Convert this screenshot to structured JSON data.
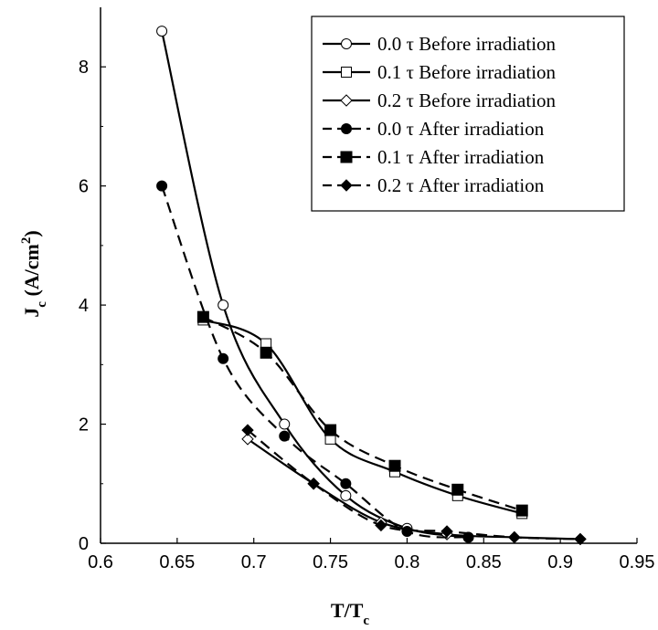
{
  "chart_data": {
    "type": "line",
    "xlabel": {
      "main": "T/T",
      "sub": "c"
    },
    "ylabel": {
      "main": "J",
      "sub": "c",
      "unit_open": " (A/cm",
      "sup": "2",
      "unit_close": ")"
    },
    "xlim": [
      0.6,
      0.95
    ],
    "ylim": [
      0,
      9
    ],
    "xticks": [
      "0.6",
      "0.65",
      "0.7",
      "0.75",
      "0.8",
      "0.85",
      "0.9",
      "0.95"
    ],
    "yticks": [
      "0",
      "2",
      "4",
      "6",
      "8"
    ],
    "legend_position": "top-right",
    "series": [
      {
        "name": "0.0 τ Before irradiation",
        "marker": "circle-open",
        "line": "solid",
        "x": [
          0.64,
          0.68,
          0.72,
          0.76,
          0.8,
          0.84
        ],
        "y": [
          8.6,
          4.0,
          2.0,
          0.8,
          0.25,
          0.1
        ]
      },
      {
        "name": "0.1 τ Before irradiation",
        "marker": "square-open",
        "line": "solid",
        "x": [
          0.667,
          0.708,
          0.75,
          0.792,
          0.833,
          0.875
        ],
        "y": [
          3.75,
          3.35,
          1.75,
          1.2,
          0.8,
          0.5
        ]
      },
      {
        "name": "0.2 τ Before irradiation",
        "marker": "diamond-open",
        "line": "solid",
        "x": [
          0.696,
          0.739,
          0.783,
          0.826,
          0.87,
          0.913
        ],
        "y": [
          1.75,
          1.0,
          0.35,
          0.15,
          0.1,
          0.07
        ]
      },
      {
        "name": "0.0 τ After irradiation",
        "marker": "circle-filled",
        "line": "dashed",
        "x": [
          0.64,
          0.68,
          0.72,
          0.76,
          0.8,
          0.84
        ],
        "y": [
          6.0,
          3.1,
          1.8,
          1.0,
          0.2,
          0.1
        ]
      },
      {
        "name": "0.1 τ After irradiation",
        "marker": "square-filled",
        "line": "dashed",
        "x": [
          0.667,
          0.708,
          0.75,
          0.792,
          0.833,
          0.875
        ],
        "y": [
          3.8,
          3.2,
          1.9,
          1.3,
          0.9,
          0.55
        ]
      },
      {
        "name": "0.2 τ After irradiation",
        "marker": "diamond-filled",
        "line": "dashed",
        "x": [
          0.696,
          0.739,
          0.783,
          0.826,
          0.87,
          0.913
        ],
        "y": [
          1.9,
          1.0,
          0.3,
          0.2,
          0.1,
          0.07
        ]
      }
    ]
  }
}
